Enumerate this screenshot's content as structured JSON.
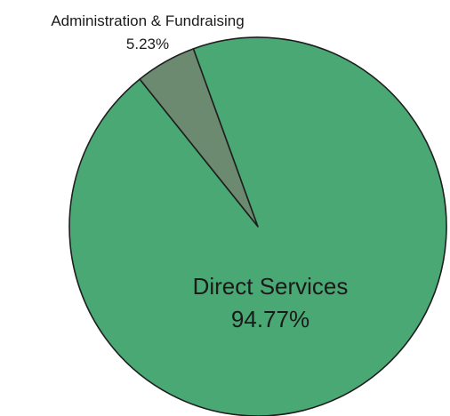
{
  "chart_data": {
    "type": "pie",
    "title": "",
    "slices": [
      {
        "label": "Direct Services",
        "value": 94.77,
        "value_text": "94.77%",
        "color": "#4aa874"
      },
      {
        "label": "Administration & Fundraising",
        "value": 5.23,
        "value_text": "5.23%",
        "color": "#6b8a6f"
      }
    ],
    "outline_color": "#1f1f1f",
    "legend": "none",
    "labels_position": "direct-services-inside, administration-outside-top"
  }
}
